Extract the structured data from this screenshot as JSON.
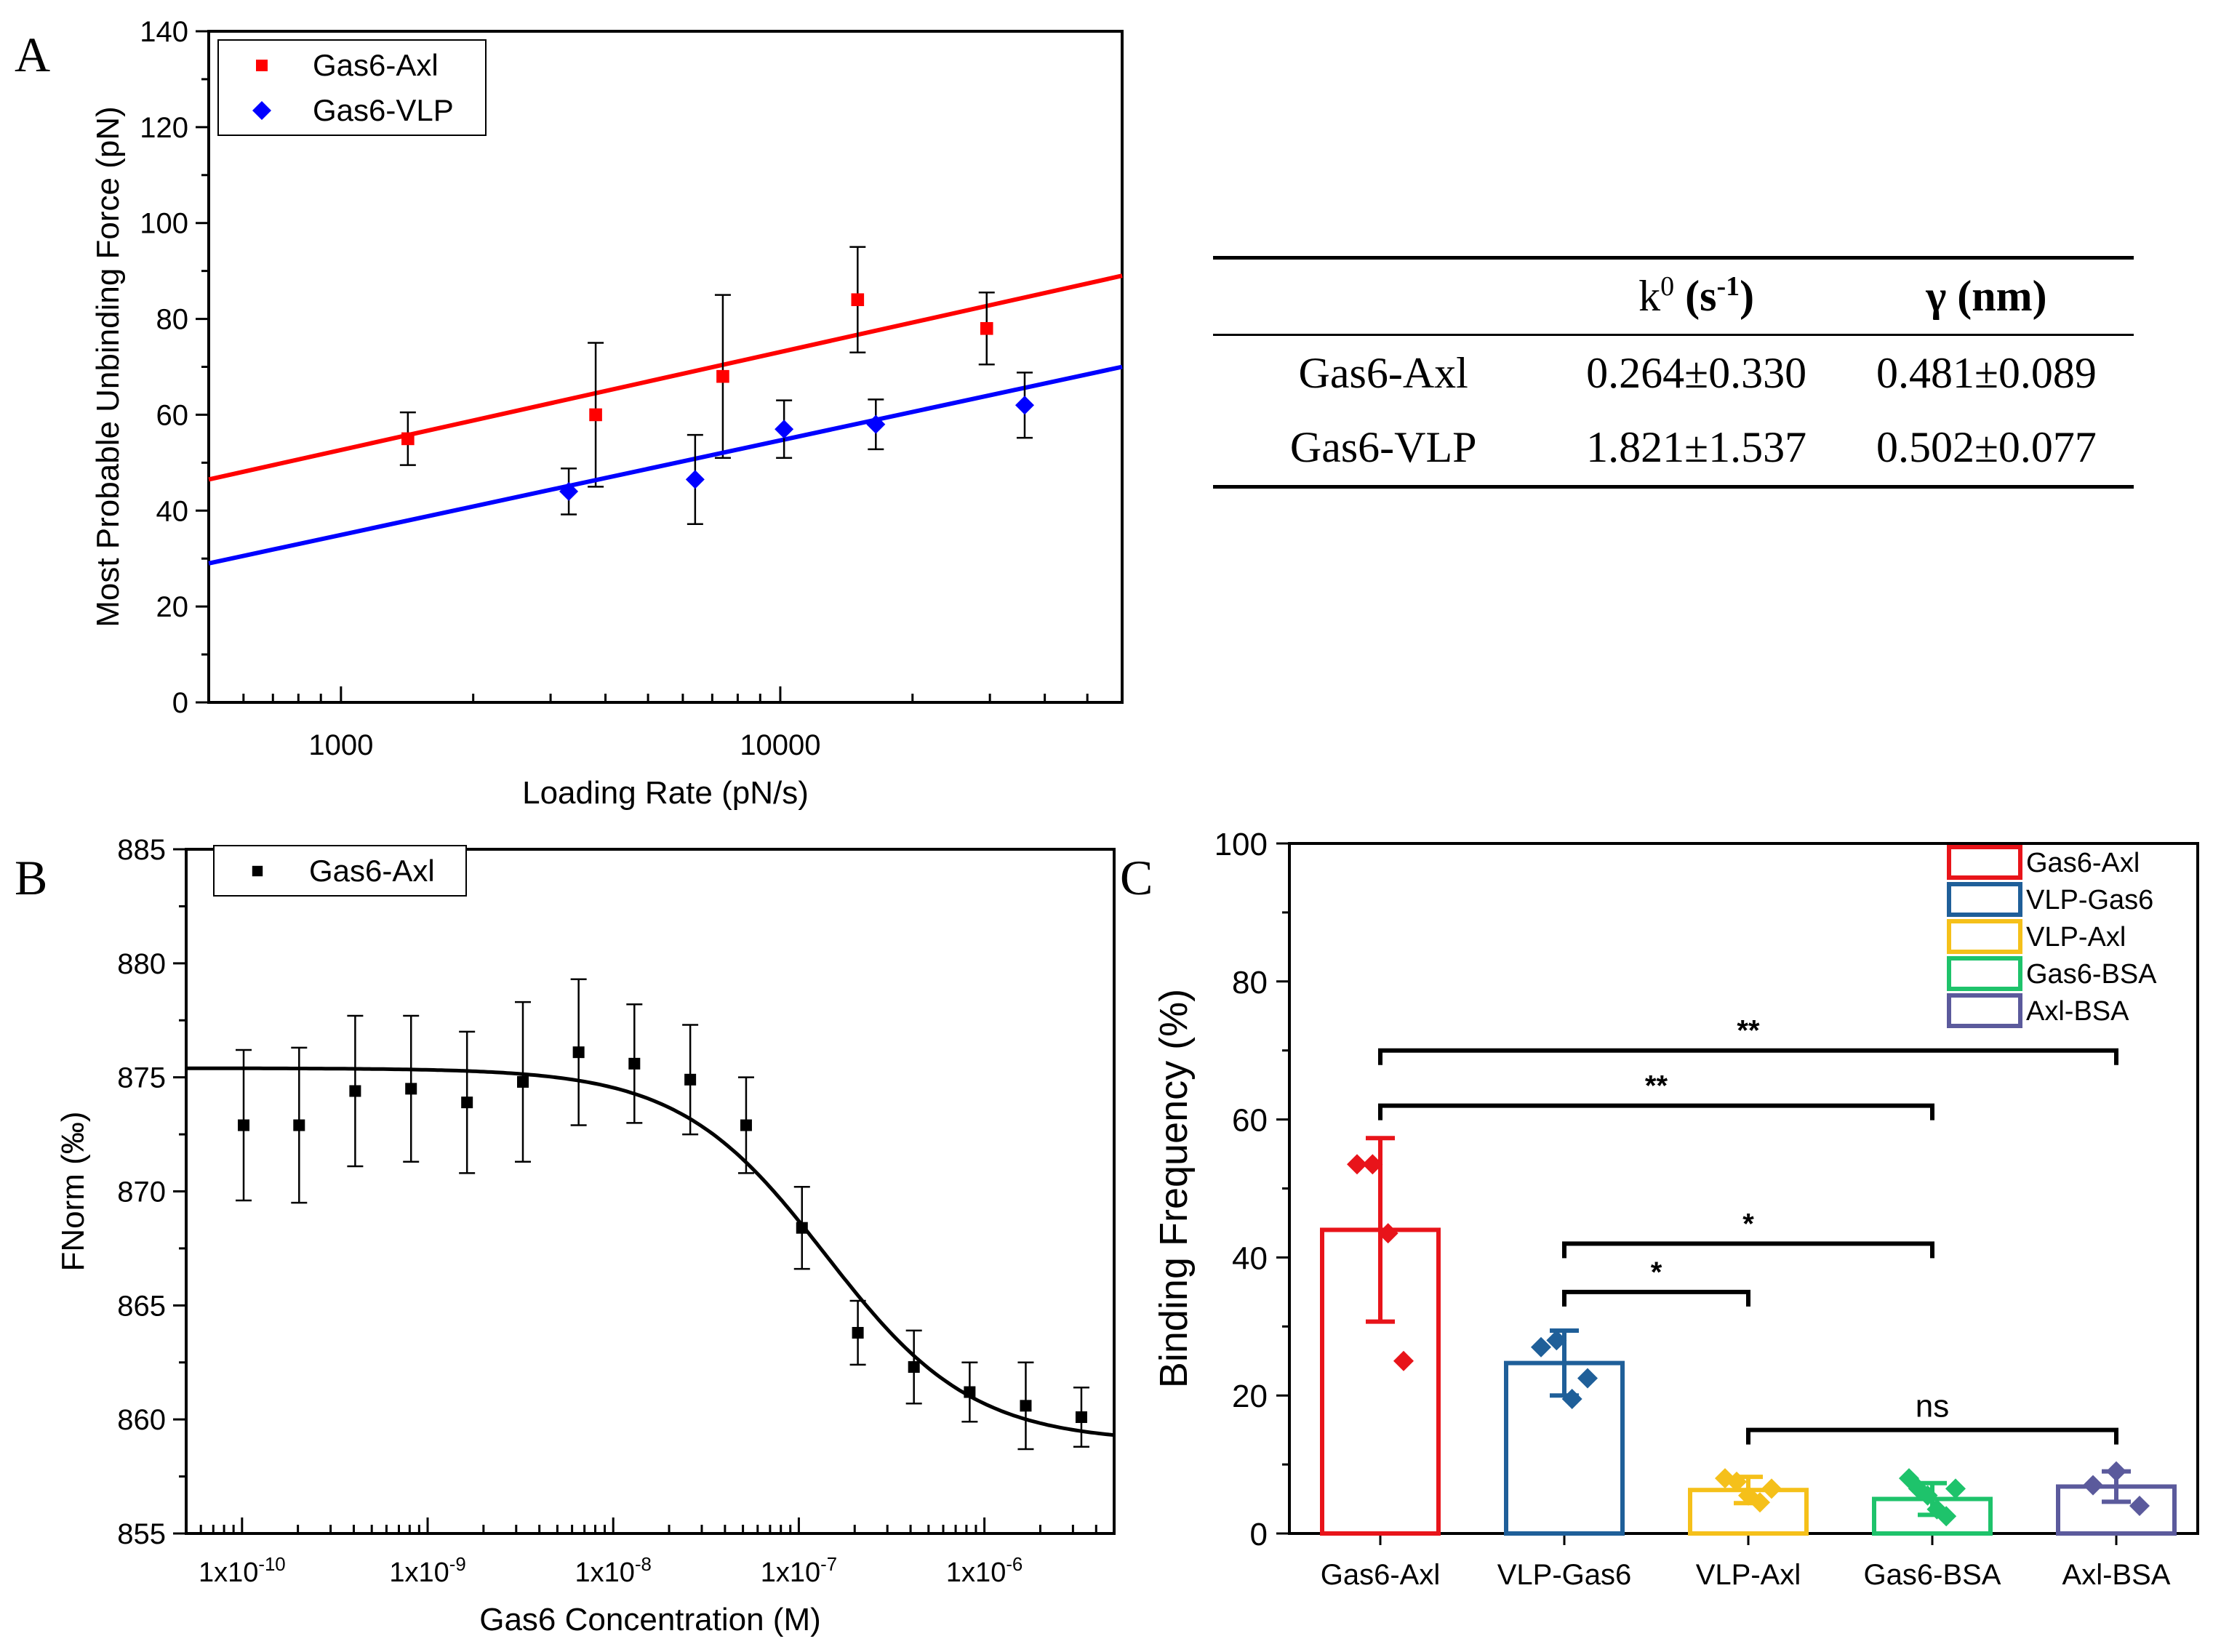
{
  "panels": {
    "A": {
      "label": "A"
    },
    "B": {
      "label": "B"
    },
    "C": {
      "label": "C"
    }
  },
  "table": {
    "headers": [
      "",
      "k0 (s-1)",
      "γ (nm)"
    ],
    "header_k0_main": "k",
    "header_k0_sup": "0",
    "header_k0_unit_open": " (s",
    "header_k0_unit_sup": "-1",
    "header_k0_unit_close": ")",
    "header_gamma": "γ (nm)",
    "rows": [
      {
        "name": "Gas6-Axl",
        "k0": "0.264±0.330",
        "gamma": "0.481±0.089"
      },
      {
        "name": "Gas6-VLP",
        "k0": "1.821±1.537",
        "gamma": "0.502±0.077"
      }
    ]
  },
  "colors": {
    "red": "#ff0000",
    "blue": "#0000ff",
    "black": "#000000",
    "c_red": "#e8141a",
    "c_blue": "#1f5f99",
    "c_yellow": "#f5c01a",
    "c_green": "#1ec36b",
    "c_purple": "#5b5a9c"
  },
  "chart_data": [
    {
      "id": "A",
      "type": "scatter",
      "xscale": "log",
      "xlabel": "Loading Rate (pN/s)",
      "ylabel": "Most Probable Unbinding Force (pN)",
      "xlim": [
        500,
        60000
      ],
      "ylim": [
        0,
        140
      ],
      "xticks": [
        1000,
        10000
      ],
      "xtick_labels": [
        "1000",
        "10000"
      ],
      "yticks": [
        0,
        20,
        40,
        60,
        80,
        100,
        120,
        140
      ],
      "ytick_labels": [
        "0",
        "20",
        "40",
        "60",
        "80",
        "100",
        "120",
        "140"
      ],
      "legend_position": "top-left",
      "series": [
        {
          "name": "Gas6-Axl",
          "color": "red",
          "marker": "square",
          "x": [
            1420,
            3800,
            7400,
            15000,
            29500
          ],
          "y": [
            55,
            60,
            68,
            84,
            78
          ],
          "err": [
            5.5,
            15,
            17,
            11,
            7.5
          ],
          "fit": {
            "x": [
              500,
              60000
            ],
            "y": [
              46.5,
              89
            ]
          }
        },
        {
          "name": "Gas6-VLP",
          "color": "blue",
          "marker": "diamond",
          "x": [
            3300,
            6400,
            10200,
            16500,
            36000
          ],
          "y": [
            44,
            46.5,
            57,
            58,
            62
          ],
          "err": [
            4.8,
            9.3,
            6,
            5.2,
            6.8
          ],
          "fit": {
            "x": [
              500,
              60000
            ],
            "y": [
              29,
              70
            ]
          }
        }
      ]
    },
    {
      "id": "B",
      "type": "scatter",
      "xscale": "log",
      "xlabel": "Gas6 Concentration (M)",
      "ylabel": "FNorm (‰)",
      "xlim": [
        5e-11,
        5e-06
      ],
      "ylim": [
        855,
        885
      ],
      "xticks": [
        1e-10,
        1e-09,
        1e-08,
        1e-07,
        1e-06
      ],
      "xtick_labels": [
        "1x10-10",
        "1x10-9",
        "1x10-8",
        "1x10-7",
        "1x10-6"
      ],
      "yticks": [
        855,
        860,
        865,
        870,
        875,
        880,
        885
      ],
      "ytick_labels": [
        "855",
        "860",
        "865",
        "870",
        "875",
        "880",
        "885"
      ],
      "legend_position": "top-left",
      "series": [
        {
          "name": "Gas6-Axl",
          "color": "black",
          "marker": "square",
          "x": [
            1.02e-10,
            2.03e-10,
            4.07e-10,
            8.14e-10,
            1.63e-09,
            3.26e-09,
            6.51e-09,
            1.3e-08,
            2.6e-08,
            5.2e-08,
            1.04e-07,
            2.08e-07,
            4.17e-07,
            8.33e-07,
            1.67e-06,
            3.33e-06
          ],
          "y": [
            872.9,
            872.9,
            874.4,
            874.5,
            873.9,
            874.8,
            876.1,
            875.6,
            874.9,
            872.9,
            868.4,
            863.8,
            862.3,
            861.2,
            860.6,
            860.1
          ],
          "err": [
            3.3,
            3.4,
            3.3,
            3.2,
            3.1,
            3.5,
            3.2,
            2.6,
            2.4,
            2.1,
            1.8,
            1.4,
            1.6,
            1.3,
            1.9,
            1.3
          ],
          "fit": {
            "model": "hill",
            "top": 875.4,
            "bottom": 859.0,
            "ec50": 1.4e-07,
            "n": 1.1
          }
        }
      ]
    },
    {
      "id": "C",
      "type": "bar",
      "ylabel": "Binding Frequency (%)",
      "ylim": [
        0,
        100
      ],
      "yticks": [
        0,
        20,
        40,
        60,
        80,
        100
      ],
      "ytick_labels": [
        "0",
        "20",
        "40",
        "60",
        "80",
        "100"
      ],
      "categories": [
        "Gas6-Axl",
        "VLP-Gas6",
        "VLP-Axl",
        "Gas6-BSA",
        "Axl-BSA"
      ],
      "legend_position": "top-right",
      "series": [
        {
          "name": "Gas6-Axl",
          "color": "c_red",
          "value": 44,
          "err": 13.3,
          "points": [
            53.5,
            53.5,
            43.5,
            25
          ]
        },
        {
          "name": "VLP-Gas6",
          "color": "c_blue",
          "value": 24.7,
          "err": 4.7,
          "points": [
            27,
            28,
            19.5,
            22.5
          ]
        },
        {
          "name": "VLP-Axl",
          "color": "c_yellow",
          "value": 6.3,
          "err": 1.9,
          "points": [
            8,
            7.5,
            5.5,
            4.5,
            6.5
          ]
        },
        {
          "name": "Gas6-BSA",
          "color": "c_green",
          "value": 5,
          "err": 2.3,
          "points": [
            8,
            6.5,
            5.5,
            3.5,
            2.5,
            6.5
          ]
        },
        {
          "name": "Axl-BSA",
          "color": "c_purple",
          "value": 6.8,
          "err": 2.2,
          "points": [
            7,
            9,
            4
          ]
        }
      ],
      "annotations": [
        {
          "from": 0,
          "to": 4,
          "y": 70,
          "label": "**"
        },
        {
          "from": 0,
          "to": 3,
          "y": 62,
          "label": "**"
        },
        {
          "from": 1,
          "to": 3,
          "y": 42,
          "label": "*"
        },
        {
          "from": 1,
          "to": 2,
          "y": 35,
          "label": "*"
        },
        {
          "from": 2,
          "to": 4,
          "y": 15,
          "label": "ns"
        }
      ]
    }
  ]
}
